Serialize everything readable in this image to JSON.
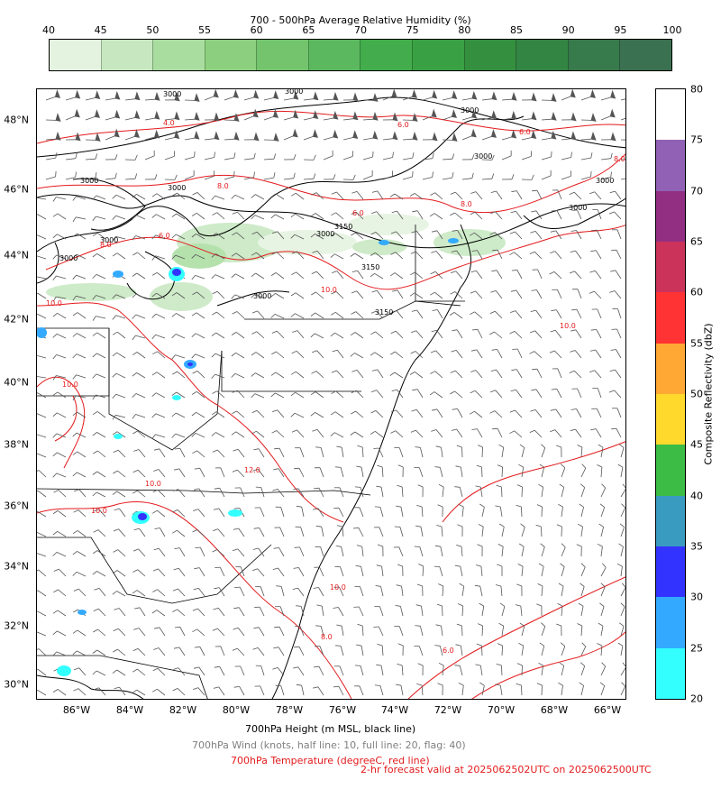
{
  "rh_colorbar": {
    "title": "700 - 500hPa Average Relative Humidity (%)",
    "ticks": [
      "40",
      "45",
      "50",
      "55",
      "60",
      "65",
      "70",
      "75",
      "80",
      "85",
      "90",
      "95",
      "100"
    ],
    "colors": [
      "#ffffff",
      "#e4f3df",
      "#c6e7bf",
      "#a9dc9f",
      "#8cd07f",
      "#73c46d",
      "#5cb85e",
      "#43ac4c",
      "#39a043",
      "#34903e",
      "#338543",
      "#377a4b",
      "#3a7150"
    ]
  },
  "reflectivity_colorbar": {
    "label": "Composite Reflectivity (dbZ)",
    "ticks": [
      "80",
      "75",
      "70",
      "65",
      "60",
      "55",
      "50",
      "45",
      "40",
      "35",
      "30",
      "25",
      "20"
    ],
    "colors": [
      "#ffffff",
      "#9061b4",
      "#922f82",
      "#cc335a",
      "#ff3333",
      "#ffa833",
      "#ffd92c",
      "#3cbc44",
      "#3a9bc0",
      "#3333ff",
      "#33aaff",
      "#33ffff"
    ]
  },
  "map": {
    "lat_labels": [
      "48°N",
      "46°N",
      "44°N",
      "42°N",
      "40°N",
      "38°N",
      "36°N",
      "34°N",
      "32°N",
      "30°N"
    ],
    "lon_labels": [
      "86°W",
      "84°W",
      "82°W",
      "80°W",
      "78°W",
      "76°W",
      "74°W",
      "72°W",
      "70°W",
      "68°W",
      "66°W"
    ],
    "contour_labels_height": [
      "3000",
      "3000",
      "3000",
      "3000",
      "3000",
      "3000",
      "3000",
      "3000",
      "3000",
      "3000",
      "3000",
      "3000",
      "3150",
      "3150",
      "3150"
    ],
    "contour_labels_temp": [
      "4.0",
      "6.0",
      "8.0",
      "6.0",
      "8.0",
      "6.0",
      "8.0",
      "10.0",
      "10.0",
      "10.0",
      "12.0",
      "10.0",
      "10.0",
      "10.0",
      "8.0",
      "6.0",
      "6.0",
      "8.0",
      "10.0"
    ],
    "colors": {
      "height": "#000000",
      "temperature": "#e31a1c",
      "wind": "#555555",
      "state": "#000000"
    }
  },
  "captions": {
    "height": "700hPa Height (m MSL, black line)",
    "wind": "700hPa Wind (knots, half line: 10, full line: 20, flag: 40)",
    "temperature": "700hPa Temperature (degreeC, red line)",
    "valid": "2-hr forecast valid at 2025062502UTC on 2025062500UTC"
  }
}
